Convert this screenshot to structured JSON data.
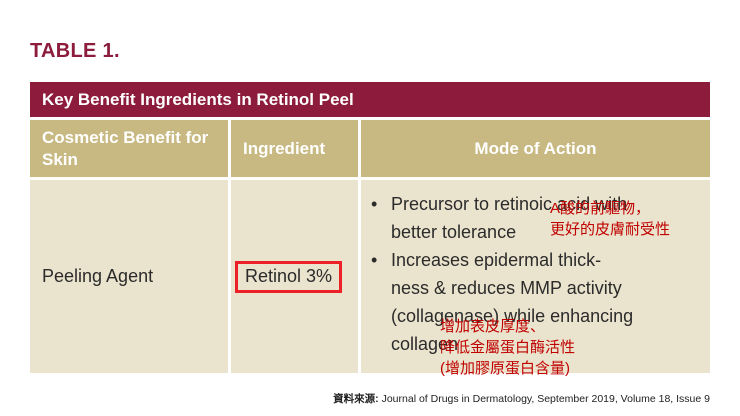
{
  "page": {
    "table_label": "TABLE 1.",
    "source_prefix": "資料來源:",
    "source_text": " Journal of Drugs in Dermatology, September 2019, Volume 18, Issue 9"
  },
  "icons": {
    "bullet": "•"
  },
  "table": {
    "title": "Key Benefit Ingredients in Retinol Peel",
    "columns": [
      "Cosmetic Benefit for Skin",
      "Ingredient",
      "Mode of Action"
    ],
    "row": {
      "benefit": "Peeling Agent",
      "ingredient": "Retinol 3%",
      "actions": [
        "Precursor to retinoic acid with\nbetter tolerance",
        "Increases epidermal thick-\nness & reduces MMP activity\n(collagenase) while enhancing\ncollagen"
      ]
    },
    "annotations": [
      "A酸的前驅物，\n更好的皮膚耐受性",
      "增加表皮厚度、\n降低金屬蛋白酶活性\n(增加膠原蛋白含量)"
    ]
  },
  "colors": {
    "maroon": "#8C1B3C",
    "tan_header": "#C7B981",
    "body_bg": "#EAE3CD",
    "annotation_red": "#C00000",
    "highlight_box_red": "#EC2027"
  }
}
